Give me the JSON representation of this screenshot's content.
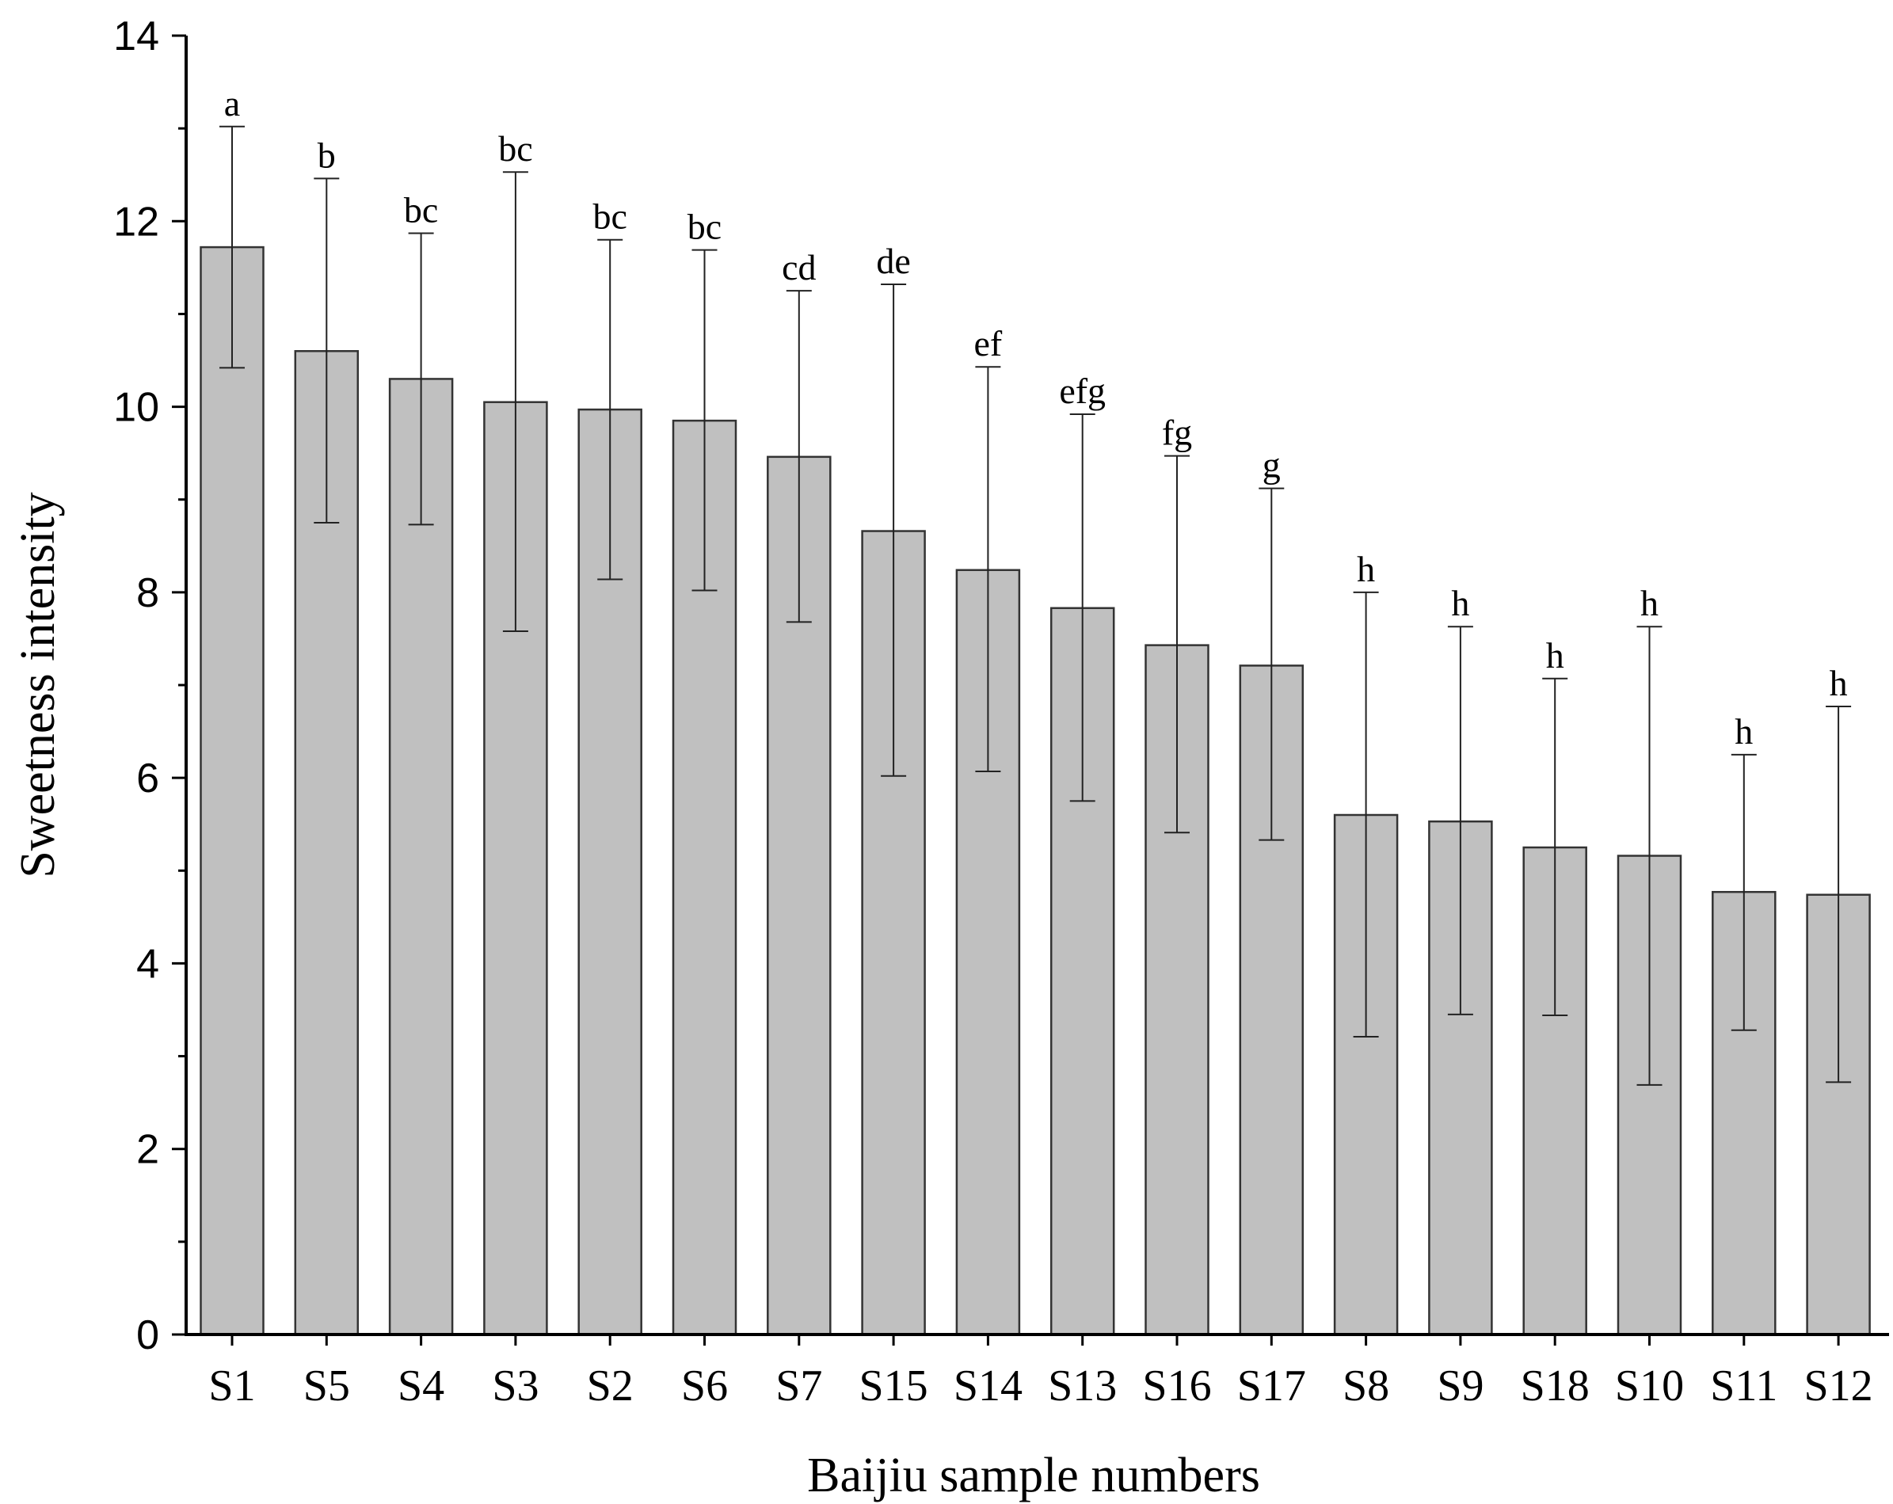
{
  "chart_data": {
    "type": "bar",
    "title": "",
    "xlabel": "Baijiu sample numbers",
    "ylabel": "Sweetness intensity",
    "ylim": [
      0,
      14
    ],
    "yticks": [
      "0",
      "2",
      "4",
      "6",
      "8",
      "10",
      "12",
      "14"
    ],
    "grid": false,
    "bar_color": "#c0c0c0",
    "categories": [
      "S1",
      "S5",
      "S4",
      "S3",
      "S2",
      "S6",
      "S7",
      "S15",
      "S14",
      "S13",
      "S16",
      "S17",
      "S8",
      "S9",
      "S18",
      "S10",
      "S11",
      "S12"
    ],
    "values": [
      11.72,
      10.6,
      10.3,
      10.05,
      9.97,
      9.85,
      9.46,
      8.66,
      8.24,
      7.83,
      7.43,
      7.21,
      5.6,
      5.53,
      5.25,
      5.16,
      4.77,
      4.74
    ],
    "error_upper": [
      13.02,
      12.46,
      11.87,
      12.53,
      11.8,
      11.69,
      11.25,
      11.32,
      10.43,
      9.92,
      9.47,
      9.12,
      8.0,
      7.63,
      7.07,
      7.63,
      6.25,
      6.77
    ],
    "error_lower": [
      10.42,
      8.75,
      8.73,
      7.58,
      8.14,
      8.02,
      7.68,
      6.02,
      6.07,
      5.75,
      5.41,
      5.33,
      3.21,
      3.45,
      3.44,
      2.69,
      3.28,
      2.72
    ],
    "significance_letters": [
      "a",
      "b",
      "bc",
      "bc",
      "bc",
      "bc",
      "cd",
      "de",
      "ef",
      "efg",
      "fg",
      "g",
      "h",
      "h",
      "h",
      "h",
      "h",
      "h"
    ]
  }
}
